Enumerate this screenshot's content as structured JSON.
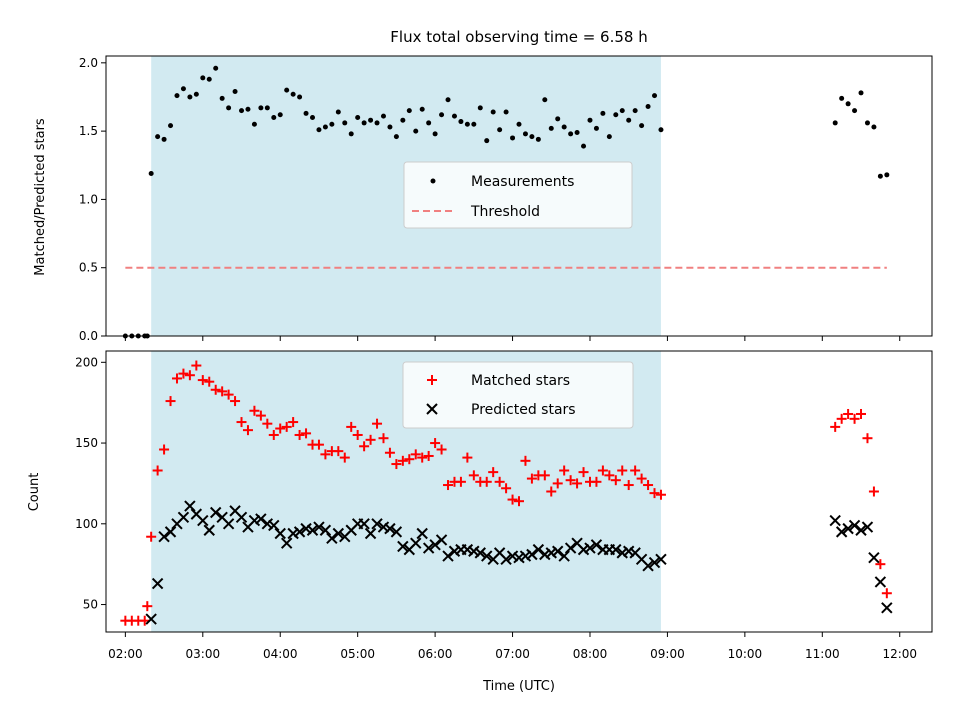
{
  "chart_data": [
    {
      "type": "scatter",
      "title": "Flux total observing time = 6.58 h",
      "xlabel": "",
      "ylabel": "Matched/Predicted stars",
      "xlim": [
        "01:45",
        "12:25"
      ],
      "ylim": [
        0,
        2.05
      ],
      "yticks": [
        "0.0",
        "0.5",
        "1.0",
        "1.5",
        "2.0"
      ],
      "xticks": [
        "02:00",
        "03:00",
        "04:00",
        "05:00",
        "06:00",
        "07:00",
        "08:00",
        "09:00",
        "10:00",
        "11:00",
        "12:00"
      ],
      "shaded_interval": [
        "02:20",
        "08:55"
      ],
      "shade_color": "#add8e6",
      "legend": {
        "position": "center-right",
        "entries": [
          "Measurements",
          "Threshold"
        ]
      },
      "series": [
        {
          "name": "Measurements",
          "marker": "dot",
          "color": "#000000",
          "x": [
            "02:00",
            "02:05",
            "02:10",
            "02:15",
            "02:17",
            "02:20",
            "02:25",
            "02:30",
            "02:35",
            "02:40",
            "02:45",
            "02:50",
            "02:55",
            "03:00",
            "03:05",
            "03:10",
            "03:15",
            "03:20",
            "03:25",
            "03:30",
            "03:35",
            "03:40",
            "03:45",
            "03:50",
            "03:55",
            "04:00",
            "04:05",
            "04:10",
            "04:15",
            "04:20",
            "04:25",
            "04:30",
            "04:35",
            "04:40",
            "04:45",
            "04:50",
            "04:55",
            "05:00",
            "05:05",
            "05:10",
            "05:15",
            "05:20",
            "05:25",
            "05:30",
            "05:35",
            "05:40",
            "05:45",
            "05:50",
            "05:55",
            "06:00",
            "06:05",
            "06:10",
            "06:15",
            "06:20",
            "06:25",
            "06:30",
            "06:35",
            "06:40",
            "06:45",
            "06:50",
            "06:55",
            "07:00",
            "07:05",
            "07:10",
            "07:15",
            "07:20",
            "07:25",
            "07:30",
            "07:35",
            "07:40",
            "07:45",
            "07:50",
            "07:55",
            "08:00",
            "08:05",
            "08:10",
            "08:15",
            "08:20",
            "08:25",
            "08:30",
            "08:35",
            "08:40",
            "08:45",
            "08:50",
            "08:55",
            "11:10",
            "11:15",
            "11:20",
            "11:25",
            "11:30",
            "11:35",
            "11:40",
            "11:45",
            "11:50"
          ],
          "y": [
            0,
            0,
            0,
            0,
            0,
            1.19,
            1.46,
            1.44,
            1.54,
            1.76,
            1.81,
            1.75,
            1.77,
            1.89,
            1.88,
            1.96,
            1.74,
            1.67,
            1.79,
            1.65,
            1.66,
            1.55,
            1.67,
            1.67,
            1.6,
            1.62,
            1.8,
            1.77,
            1.75,
            1.63,
            1.6,
            1.51,
            1.53,
            1.55,
            1.64,
            1.56,
            1.48,
            1.6,
            1.56,
            1.58,
            1.56,
            1.61,
            1.53,
            1.46,
            1.58,
            1.65,
            1.5,
            1.66,
            1.56,
            1.48,
            1.62,
            1.73,
            1.61,
            1.57,
            1.55,
            1.55,
            1.67,
            1.43,
            1.64,
            1.51,
            1.64,
            1.45,
            1.55,
            1.48,
            1.46,
            1.44,
            1.73,
            1.52,
            1.59,
            1.53,
            1.48,
            1.49,
            1.39,
            1.58,
            1.52,
            1.63,
            1.46,
            1.62,
            1.65,
            1.58,
            1.65,
            1.54,
            1.68,
            1.76,
            1.51,
            1.56,
            1.74,
            1.7,
            1.65,
            1.78,
            1.56,
            1.53,
            1.17,
            1.18
          ]
        },
        {
          "name": "Threshold",
          "style": "dashed",
          "color": "#f08080",
          "x": [
            "02:00",
            "11:50"
          ],
          "y": [
            0.5,
            0.5
          ]
        }
      ]
    },
    {
      "type": "scatter",
      "title": "",
      "xlabel": "Time (UTC)",
      "ylabel": "Count",
      "xlim": [
        "01:45",
        "12:25"
      ],
      "ylim": [
        33,
        207
      ],
      "yticks": [
        "50",
        "100",
        "150",
        "200"
      ],
      "xticks": [
        "02:00",
        "03:00",
        "04:00",
        "05:00",
        "06:00",
        "07:00",
        "08:00",
        "09:00",
        "10:00",
        "11:00",
        "12:00"
      ],
      "shaded_interval": [
        "02:20",
        "08:55"
      ],
      "shade_color": "#add8e6",
      "legend": {
        "position": "top-center",
        "entries": [
          "Matched stars",
          "Predicted stars"
        ]
      },
      "series": [
        {
          "name": "Matched stars",
          "marker": "plus",
          "color": "#ff0000",
          "x": [
            "02:00",
            "02:05",
            "02:10",
            "02:15",
            "02:17",
            "02:20",
            "02:25",
            "02:30",
            "02:35",
            "02:40",
            "02:45",
            "02:50",
            "02:55",
            "03:00",
            "03:05",
            "03:10",
            "03:15",
            "03:20",
            "03:25",
            "03:30",
            "03:35",
            "03:40",
            "03:45",
            "03:50",
            "03:55",
            "04:00",
            "04:05",
            "04:10",
            "04:15",
            "04:20",
            "04:25",
            "04:30",
            "04:35",
            "04:40",
            "04:45",
            "04:50",
            "04:55",
            "05:00",
            "05:05",
            "05:10",
            "05:15",
            "05:20",
            "05:25",
            "05:30",
            "05:35",
            "05:40",
            "05:45",
            "05:50",
            "05:55",
            "06:00",
            "06:05",
            "06:10",
            "06:15",
            "06:20",
            "06:25",
            "06:30",
            "06:35",
            "06:40",
            "06:45",
            "06:50",
            "06:55",
            "07:00",
            "07:05",
            "07:10",
            "07:15",
            "07:20",
            "07:25",
            "07:30",
            "07:35",
            "07:40",
            "07:45",
            "07:50",
            "07:55",
            "08:00",
            "08:05",
            "08:10",
            "08:15",
            "08:20",
            "08:25",
            "08:30",
            "08:35",
            "08:40",
            "08:45",
            "08:50",
            "08:55",
            "11:10",
            "11:15",
            "11:20",
            "11:25",
            "11:30",
            "11:35",
            "11:40",
            "11:45",
            "11:50"
          ],
          "y": [
            40,
            40,
            40,
            40,
            49,
            92,
            133,
            146,
            176,
            190,
            193,
            192,
            198,
            189,
            188,
            183,
            182,
            180,
            176,
            163,
            158,
            170,
            167,
            162,
            155,
            159,
            160,
            163,
            155,
            156,
            149,
            149,
            143,
            145,
            145,
            141,
            160,
            155,
            148,
            152,
            162,
            153,
            144,
            137,
            139,
            140,
            143,
            141,
            142,
            150,
            146,
            124,
            126,
            126,
            141,
            130,
            126,
            126,
            132,
            126,
            122,
            115,
            114,
            139,
            128,
            130,
            130,
            120,
            125,
            133,
            127,
            125,
            132,
            126,
            126,
            133,
            130,
            127,
            133,
            124,
            133,
            128,
            124,
            119,
            118,
            160,
            165,
            168,
            165,
            168,
            153,
            120,
            75,
            57
          ]
        },
        {
          "name": "Predicted stars",
          "marker": "x",
          "color": "#000000",
          "x": [
            "02:20",
            "02:25",
            "02:30",
            "02:35",
            "02:40",
            "02:45",
            "02:50",
            "02:55",
            "03:00",
            "03:05",
            "03:10",
            "03:15",
            "03:20",
            "03:25",
            "03:30",
            "03:35",
            "03:40",
            "03:45",
            "03:50",
            "03:55",
            "04:00",
            "04:05",
            "04:10",
            "04:15",
            "04:20",
            "04:25",
            "04:30",
            "04:35",
            "04:40",
            "04:45",
            "04:50",
            "04:55",
            "05:00",
            "05:05",
            "05:10",
            "05:15",
            "05:20",
            "05:25",
            "05:30",
            "05:35",
            "05:40",
            "05:45",
            "05:50",
            "05:55",
            "06:00",
            "06:05",
            "06:10",
            "06:15",
            "06:20",
            "06:25",
            "06:30",
            "06:35",
            "06:40",
            "06:45",
            "06:50",
            "06:55",
            "07:00",
            "07:05",
            "07:10",
            "07:15",
            "07:20",
            "07:25",
            "07:30",
            "07:35",
            "07:40",
            "07:45",
            "07:50",
            "07:55",
            "08:00",
            "08:05",
            "08:10",
            "08:15",
            "08:20",
            "08:25",
            "08:30",
            "08:35",
            "08:40",
            "08:45",
            "08:50",
            "08:55",
            "11:10",
            "11:15",
            "11:20",
            "11:25",
            "11:30",
            "11:35",
            "11:40",
            "11:45",
            "11:50"
          ],
          "y": [
            41,
            63,
            92,
            95,
            100,
            104,
            111,
            106,
            102,
            96,
            107,
            104,
            100,
            108,
            104,
            98,
            102,
            103,
            100,
            99,
            94,
            88,
            94,
            95,
            97,
            96,
            98,
            96,
            91,
            94,
            92,
            96,
            100,
            100,
            94,
            100,
            98,
            97,
            95,
            86,
            84,
            88,
            94,
            85,
            87,
            90,
            80,
            83,
            84,
            84,
            83,
            82,
            80,
            78,
            82,
            78,
            80,
            79,
            80,
            81,
            84,
            81,
            82,
            83,
            80,
            85,
            88,
            84,
            85,
            87,
            84,
            84,
            84,
            82,
            83,
            82,
            78,
            74,
            76,
            78,
            102,
            95,
            97,
            99,
            96,
            98,
            79,
            64,
            48
          ]
        }
      ]
    }
  ]
}
